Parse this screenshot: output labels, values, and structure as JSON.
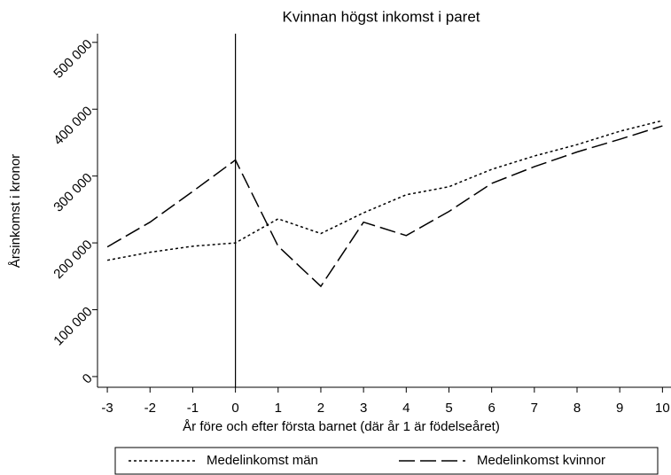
{
  "chart_data": {
    "type": "line",
    "title": "Kvinnan högst inkomst i paret",
    "xlabel": "År före och efter första barnet (där år 1 är födelseåret)",
    "ylabel": "Årsinkomst i kronor",
    "x": [
      -3,
      -2,
      -1,
      0,
      1,
      2,
      3,
      4,
      5,
      6,
      7,
      8,
      9,
      10
    ],
    "series": [
      {
        "name": "Medelinkomst män",
        "color": "#000000",
        "dash": "3,3",
        "values": [
          174000,
          186000,
          195000,
          200000,
          236000,
          214000,
          245000,
          272000,
          284000,
          310000,
          330000,
          347000,
          367000,
          383000
        ]
      },
      {
        "name": "Medelinkomst kvinnor",
        "color": "#000000",
        "dash": "18,6",
        "values": [
          194000,
          231000,
          277000,
          324000,
          195000,
          135000,
          231000,
          211000,
          247000,
          289000,
          314000,
          336000,
          355000,
          375000
        ]
      }
    ],
    "vline": 0,
    "xlim": [
      -3.23,
      10.2
    ],
    "ylim": [
      -16000,
      513000
    ],
    "xticks": [
      -3,
      -2,
      -1,
      0,
      1,
      2,
      3,
      4,
      5,
      6,
      7,
      8,
      9,
      10
    ],
    "yticks": [
      0,
      {
        "value": 100000,
        "label": "100 000"
      },
      {
        "value": 200000,
        "label": "200 000"
      },
      {
        "value": 300000,
        "label": "300 000"
      },
      {
        "value": 400000,
        "label": "400 000"
      },
      {
        "value": 500000,
        "label": "500 000"
      }
    ],
    "legend": "bottom"
  }
}
